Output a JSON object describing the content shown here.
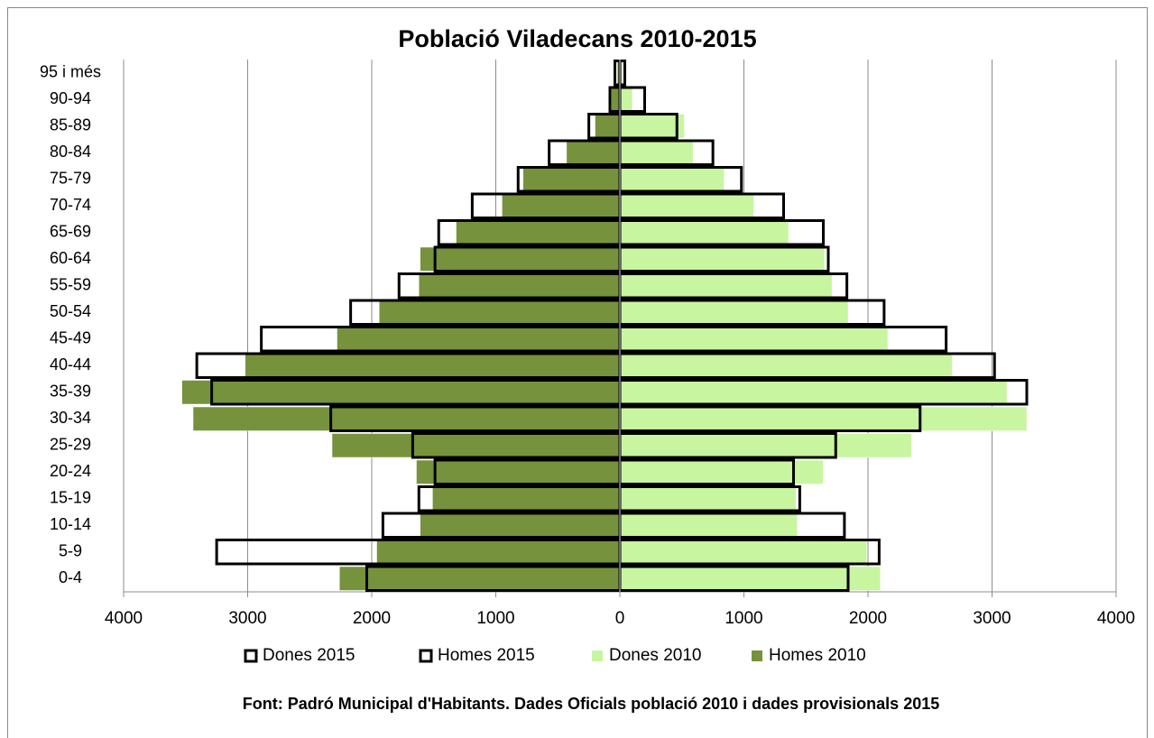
{
  "chart_data": {
    "type": "pyramid",
    "title": "Població Viladecans 2010-2015",
    "note": "Font: Padró Municipal  d'Habitants. Dades Oficials  població  2010 i dades provisionals  2015",
    "categories": [
      "0-4",
      "5-9",
      "10-14",
      "15-19",
      "20-24",
      "25-29",
      "30-34",
      "35-39",
      "40-44",
      "45-49",
      "50-54",
      "55-59",
      "60-64",
      "65-69",
      "70-74",
      "75-79",
      "80-84",
      "85-89",
      "90-94",
      "95 i més"
    ],
    "series": [
      {
        "name": "Dones 2015",
        "color": "#000000",
        "style": "outline",
        "values": [
          1840,
          2090,
          1810,
          1450,
          1400,
          1740,
          2420,
          3280,
          3020,
          2630,
          2130,
          1830,
          1680,
          1640,
          1320,
          980,
          750,
          460,
          200,
          40
        ]
      },
      {
        "name": "Homes 2015",
        "color": "#000000",
        "style": "outline",
        "values": [
          -2040,
          -3250,
          -1910,
          -1620,
          -1490,
          -1670,
          -2330,
          -3290,
          -3410,
          -2890,
          -2170,
          -1780,
          -1490,
          -1460,
          -1190,
          -820,
          -570,
          -250,
          -80,
          -40
        ]
      },
      {
        "name": "Dones 2010",
        "color": "#c8f5a0",
        "style": "solid",
        "values": [
          2100,
          1990,
          1430,
          1420,
          1640,
          2350,
          3280,
          3120,
          2680,
          2160,
          1840,
          1710,
          1650,
          1360,
          1080,
          840,
          590,
          520,
          100,
          20
        ]
      },
      {
        "name": "Homes 2010",
        "color": "#76923c",
        "style": "solid",
        "values": [
          -2260,
          -1960,
          -1610,
          -1510,
          -1640,
          -2320,
          -3440,
          -3530,
          -3020,
          -2280,
          -1940,
          -1620,
          -1610,
          -1320,
          -950,
          -780,
          -430,
          -200,
          -70,
          -20
        ]
      }
    ],
    "xlim": [
      -4000,
      4000
    ],
    "xticks": [
      {
        "value": -4000,
        "label": "4000"
      },
      {
        "value": -3000,
        "label": "3000"
      },
      {
        "value": -2000,
        "label": "2000"
      },
      {
        "value": -1000,
        "label": "1000"
      },
      0,
      1000,
      2000,
      3000,
      4000
    ],
    "grid": true,
    "legend": "bottom"
  }
}
